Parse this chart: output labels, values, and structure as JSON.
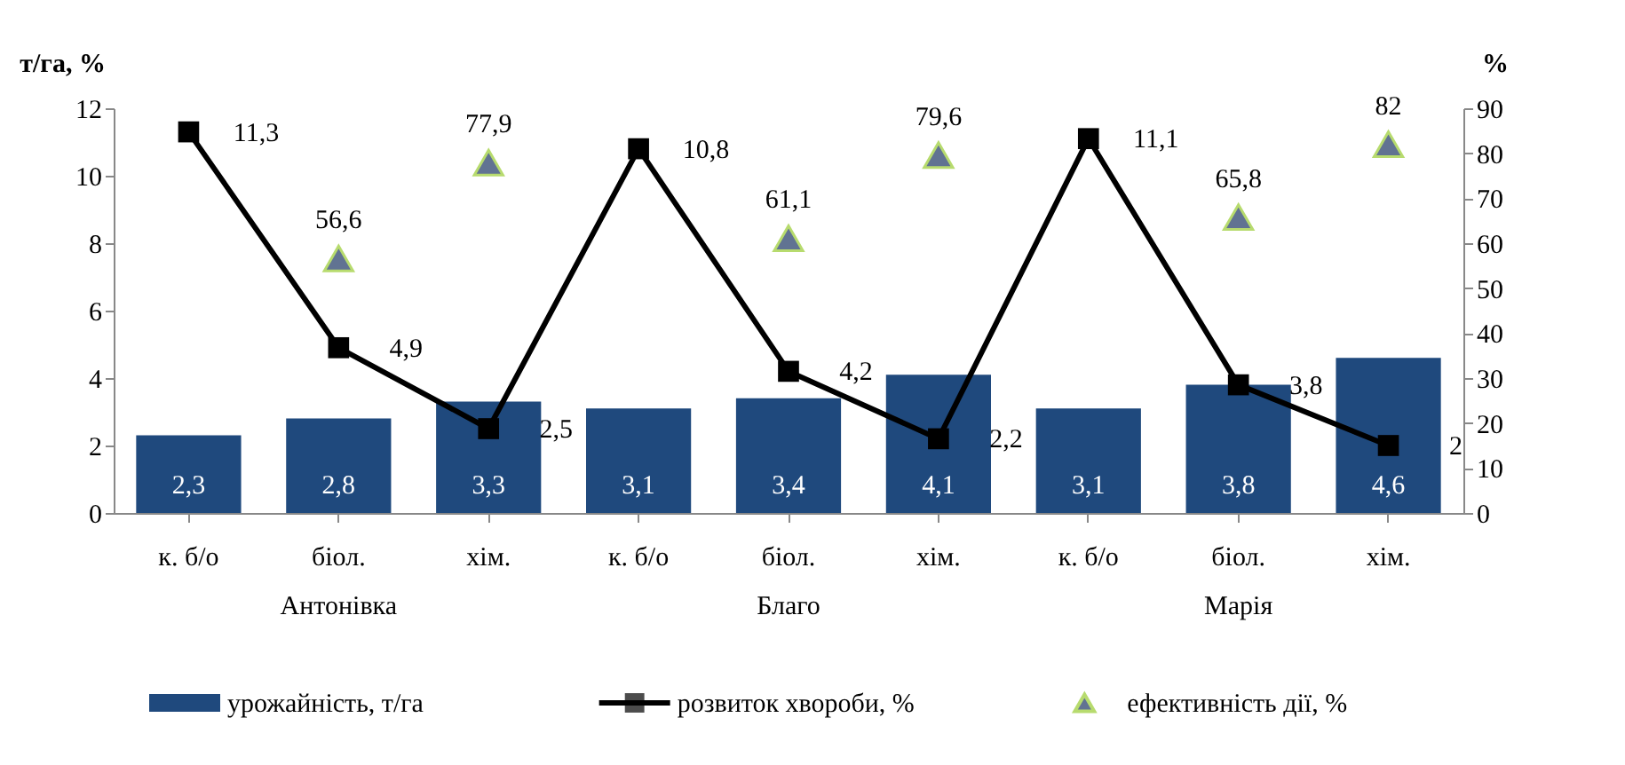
{
  "chart_data": {
    "type": "bar",
    "categories": [
      "к. б/о",
      "біол.",
      "хім.",
      "к. б/о",
      "біол.",
      "хім.",
      "к. б/о",
      "біол.",
      "хім."
    ],
    "ylabel": "т/га, %",
    "y2label": "%",
    "ylim": [
      0,
      12
    ],
    "yticks": [
      0,
      2,
      4,
      6,
      8,
      10,
      12
    ],
    "y2lim": [
      0,
      90
    ],
    "y2ticks": [
      0,
      10,
      20,
      30,
      40,
      50,
      60,
      70,
      80,
      90
    ],
    "grid": false,
    "legend": "bottom",
    "annotations": [
      "Антонівка",
      "Благо",
      "Марія"
    ],
    "series": [
      {
        "name": "урожайність, т/га",
        "color": "#1f497d",
        "values": [
          2.3,
          2.8,
          3.3,
          3.1,
          3.4,
          4.1,
          3.1,
          3.8,
          4.6
        ],
        "value_labels": [
          "2,3",
          "2,8",
          "3,3",
          "3,1",
          "3,4",
          "4,1",
          "3,1",
          "3,8",
          "4,6"
        ]
      },
      {
        "name": "розвиток хвороби, %",
        "type": "line",
        "color": "#000000",
        "marker": "square",
        "line_style": "solid",
        "values": [
          11.3,
          4.9,
          2.5,
          10.8,
          4.2,
          2.2,
          11.1,
          3.8,
          2
        ],
        "value_labels": [
          "11,3",
          "4,9",
          "2,5",
          "10,8",
          "4,2",
          "2,2",
          "11,1",
          "3,8",
          "2"
        ]
      },
      {
        "name": "ефективність дії, %",
        "type": "scatter",
        "axis": "y2",
        "color": "#1f3864",
        "marker": "triangle",
        "values": [
          null,
          56.6,
          77.9,
          null,
          61.1,
          79.6,
          null,
          65.8,
          82
        ],
        "value_labels": [
          null,
          "56,6",
          "77,9",
          null,
          "61,1",
          "79,6",
          null,
          "65,8",
          "82"
        ]
      }
    ]
  }
}
